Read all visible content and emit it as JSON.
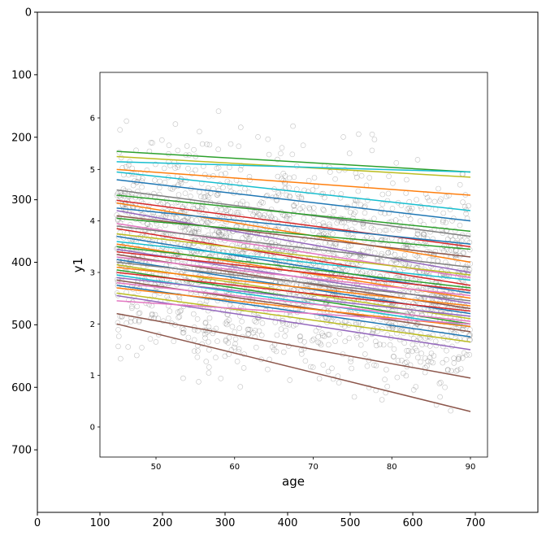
{
  "chart_data": [
    {
      "type": "image-axes",
      "description_role": "outer matplotlib axes framing an embedded image",
      "x_ticks": [
        0,
        100,
        200,
        300,
        400,
        500,
        600,
        700
      ],
      "y_ticks": [
        0,
        100,
        200,
        300,
        400,
        500,
        600,
        700
      ],
      "xlim": [
        0,
        800
      ],
      "ylim": [
        800,
        0
      ],
      "grid": false
    },
    {
      "type": "scatter+line",
      "xlabel": "age",
      "ylabel": "y1",
      "x_ticks": [
        50,
        60,
        70,
        80,
        90
      ],
      "y_ticks": [
        0,
        1,
        2,
        3,
        4,
        5,
        6
      ],
      "xlim": [
        43,
        92
      ],
      "ylim": [
        -0.6,
        6.9
      ],
      "scatter": {
        "x_range": [
          45,
          90
        ],
        "y_center_at_45": 3.6,
        "y_center_at_90": 2.7,
        "spread": 0.95,
        "point_count": 2200,
        "color": "#555555"
      },
      "line_colors": [
        "#1f77b4",
        "#ff7f0e",
        "#2ca02c",
        "#d62728",
        "#9467bd",
        "#8c564b",
        "#e377c2",
        "#7f7f7f",
        "#bcbd22",
        "#17becf"
      ],
      "lines": [
        {
          "x": [
            45,
            90
          ],
          "y": [
            5.35,
            4.95
          ],
          "color": "#2ca02c"
        },
        {
          "x": [
            45,
            90
          ],
          "y": [
            5.25,
            4.85
          ],
          "color": "#bcbd22"
        },
        {
          "x": [
            45,
            90
          ],
          "y": [
            5.15,
            4.95
          ],
          "color": "#17becf"
        },
        {
          "x": [
            45,
            90
          ],
          "y": [
            5.0,
            4.5
          ],
          "color": "#ff7f0e"
        },
        {
          "x": [
            45,
            90
          ],
          "y": [
            4.95,
            4.2
          ],
          "color": "#17becf"
        },
        {
          "x": [
            45,
            90
          ],
          "y": [
            4.8,
            4.0
          ],
          "color": "#1f77b4"
        },
        {
          "x": [
            45,
            90
          ],
          "y": [
            4.6,
            3.7
          ],
          "color": "#7f7f7f"
        },
        {
          "x": [
            45,
            90
          ],
          "y": [
            4.5,
            3.8
          ],
          "color": "#2ca02c"
        },
        {
          "x": [
            45,
            90
          ],
          "y": [
            4.4,
            3.5
          ],
          "color": "#d62728"
        },
        {
          "x": [
            45,
            90
          ],
          "y": [
            4.35,
            3.2
          ],
          "color": "#ff7f0e"
        },
        {
          "x": [
            45,
            90
          ],
          "y": [
            4.25,
            3.55
          ],
          "color": "#1f77b4"
        },
        {
          "x": [
            45,
            90
          ],
          "y": [
            4.2,
            3.0
          ],
          "color": "#9467bd"
        },
        {
          "x": [
            45,
            90
          ],
          "y": [
            4.1,
            3.3
          ],
          "color": "#8c564b"
        },
        {
          "x": [
            45,
            90
          ],
          "y": [
            4.05,
            3.45
          ],
          "color": "#2ca02c"
        },
        {
          "x": [
            45,
            90
          ],
          "y": [
            3.95,
            2.9
          ],
          "color": "#e377c2"
        },
        {
          "x": [
            45,
            90
          ],
          "y": [
            3.9,
            3.1
          ],
          "color": "#7f7f7f"
        },
        {
          "x": [
            45,
            90
          ],
          "y": [
            3.85,
            2.75
          ],
          "color": "#d62728"
        },
        {
          "x": [
            45,
            90
          ],
          "y": [
            3.75,
            2.95
          ],
          "color": "#bcbd22"
        },
        {
          "x": [
            45,
            90
          ],
          "y": [
            3.7,
            2.6
          ],
          "color": "#1f77b4"
        },
        {
          "x": [
            45,
            90
          ],
          "y": [
            3.6,
            2.85
          ],
          "color": "#17becf"
        },
        {
          "x": [
            45,
            90
          ],
          "y": [
            3.55,
            2.5
          ],
          "color": "#ff7f0e"
        },
        {
          "x": [
            45,
            90
          ],
          "y": [
            3.5,
            2.7
          ],
          "color": "#2ca02c"
        },
        {
          "x": [
            45,
            90
          ],
          "y": [
            3.45,
            2.4
          ],
          "color": "#9467bd"
        },
        {
          "x": [
            45,
            90
          ],
          "y": [
            3.4,
            2.65
          ],
          "color": "#d62728"
        },
        {
          "x": [
            45,
            90
          ],
          "y": [
            3.35,
            2.3
          ],
          "color": "#8c564b"
        },
        {
          "x": [
            45,
            90
          ],
          "y": [
            3.3,
            2.55
          ],
          "color": "#e377c2"
        },
        {
          "x": [
            45,
            90
          ],
          "y": [
            3.25,
            2.2
          ],
          "color": "#1f77b4"
        },
        {
          "x": [
            45,
            90
          ],
          "y": [
            3.2,
            2.45
          ],
          "color": "#7f7f7f"
        },
        {
          "x": [
            45,
            90
          ],
          "y": [
            3.15,
            2.1
          ],
          "color": "#bcbd22"
        },
        {
          "x": [
            45,
            90
          ],
          "y": [
            3.1,
            2.35
          ],
          "color": "#ff7f0e"
        },
        {
          "x": [
            45,
            90
          ],
          "y": [
            3.05,
            2.0
          ],
          "color": "#2ca02c"
        },
        {
          "x": [
            45,
            90
          ],
          "y": [
            3.0,
            2.25
          ],
          "color": "#d62728"
        },
        {
          "x": [
            45,
            90
          ],
          "y": [
            2.95,
            1.95
          ],
          "color": "#17becf"
        },
        {
          "x": [
            45,
            90
          ],
          "y": [
            2.9,
            2.15
          ],
          "color": "#9467bd"
        },
        {
          "x": [
            45,
            90
          ],
          "y": [
            2.85,
            1.85
          ],
          "color": "#8c564b"
        },
        {
          "x": [
            45,
            90
          ],
          "y": [
            2.8,
            2.05
          ],
          "color": "#e377c2"
        },
        {
          "x": [
            45,
            90
          ],
          "y": [
            2.75,
            1.75
          ],
          "color": "#1f77b4"
        },
        {
          "x": [
            45,
            90
          ],
          "y": [
            2.7,
            1.95
          ],
          "color": "#ff7f0e"
        },
        {
          "x": [
            45,
            90
          ],
          "y": [
            2.6,
            1.65
          ],
          "color": "#bcbd22"
        },
        {
          "x": [
            45,
            90
          ],
          "y": [
            2.55,
            1.5
          ],
          "color": "#9467bd"
        },
        {
          "x": [
            45,
            90
          ],
          "y": [
            2.45,
            2.0
          ],
          "color": "#e377c2"
        },
        {
          "x": [
            45,
            90
          ],
          "y": [
            2.2,
            0.95
          ],
          "color": "#8c564b"
        },
        {
          "x": [
            45,
            90
          ],
          "y": [
            2.0,
            0.3
          ],
          "color": "#8c564b"
        }
      ]
    }
  ]
}
